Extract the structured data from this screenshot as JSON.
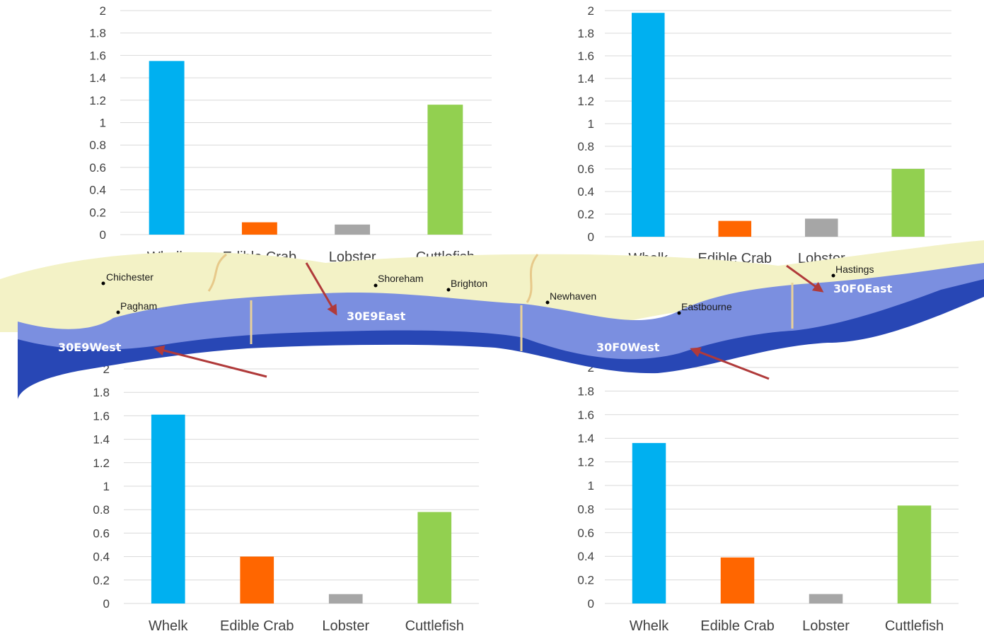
{
  "colors": {
    "whelk": "#00b0f0",
    "edible_crab": "#ff6600",
    "lobster": "#a6a6a6",
    "cuttlefish": "#92d050",
    "gridline": "#d9d9d9",
    "land": "#f3f2c6",
    "sea_light": "#7b8fe0",
    "sea_dark": "#1f3fa8",
    "arrow": "#b03a3a"
  },
  "map": {
    "towns": [
      "Chichester",
      "Pagham",
      "Shoreham",
      "Brighton",
      "Newhaven",
      "Eastbourne",
      "Hastings"
    ],
    "areas": [
      "30E9West",
      "30E9East",
      "30F0West",
      "30F0East"
    ]
  },
  "chart_data": [
    {
      "type": "bar",
      "categories": [
        "Whelk",
        "Edible Crab",
        "Lobster",
        "Cuttlefish"
      ],
      "values": [
        1.55,
        0.11,
        0.09,
        1.16
      ],
      "yticks": [
        "0",
        "0.2",
        "0.4",
        "0.6",
        "0.8",
        "1",
        "1.2",
        "1.4",
        "1.6",
        "1.8",
        "2"
      ],
      "ylim": [
        0,
        2
      ],
      "grid": true
    },
    {
      "type": "bar",
      "categories": [
        "Whelk",
        "Edible Crab",
        "Lobster",
        "Cuttlefish"
      ],
      "values": [
        1.98,
        0.14,
        0.16,
        0.6
      ],
      "yticks": [
        "0",
        "0.2",
        "0.4",
        "0.6",
        "0.8",
        "1",
        "1.2",
        "1.4",
        "1.6",
        "1.8",
        "2"
      ],
      "ylim": [
        0,
        2
      ],
      "grid": true
    },
    {
      "type": "bar",
      "categories": [
        "Whelk",
        "Edible Crab",
        "Lobster",
        "Cuttlefish"
      ],
      "values": [
        1.61,
        0.4,
        0.08,
        0.78
      ],
      "yticks": [
        "0",
        "0.2",
        "0.4",
        "0.6",
        "0.8",
        "1",
        "1.2",
        "1.4",
        "1.6",
        "1.8",
        "2"
      ],
      "ylim": [
        0,
        2
      ],
      "grid": true
    },
    {
      "type": "bar",
      "categories": [
        "Whelk",
        "Edible Crab",
        "Lobster",
        "Cuttlefish"
      ],
      "values": [
        1.36,
        0.39,
        0.08,
        0.83
      ],
      "yticks": [
        "0",
        "0.2",
        "0.4",
        "0.6",
        "0.8",
        "1",
        "1.2",
        "1.4",
        "1.6",
        "1.8",
        "2"
      ],
      "ylim": [
        0,
        2
      ],
      "grid": true
    }
  ]
}
